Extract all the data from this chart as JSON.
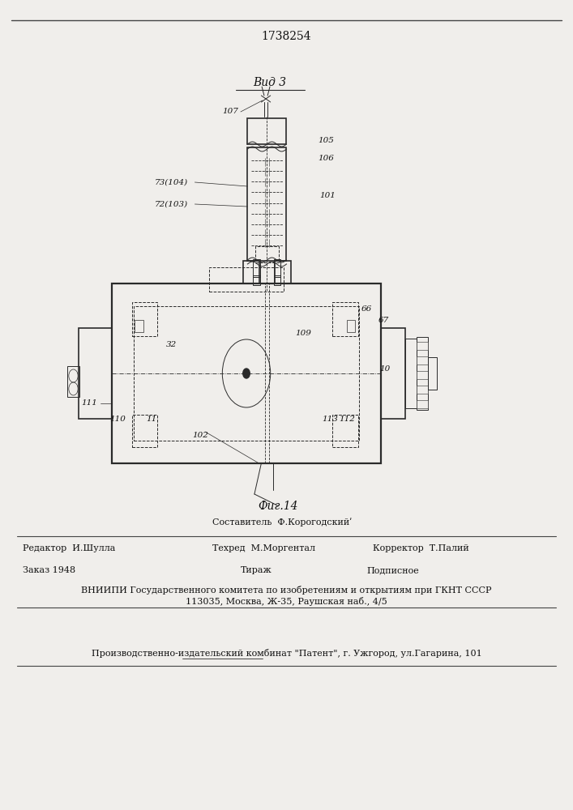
{
  "patent_number": "1738254",
  "background_color": "#f0eeeb",
  "title_view": "Вид 3",
  "figure_label": "Фиг.14",
  "footer": {
    "sestavitel_label": "Составитель  Ф.Корогодскийʹ",
    "redaktor_label": "Редактор  И.Шулла",
    "tehred_label": "Техред  М.Моргентал",
    "korrektor_label": "Корректор  Т.Палий",
    "zakaz": "Заказ 1948",
    "tiraj": "Тираж",
    "podpisnoe": "Подписное",
    "vniiipi_line1": "ВНИИПИ Государственного комитета по изобретениям и открытиям при ГКНТ СССР",
    "vniiipi_line2": "113035, Москва, Ж-35, Раушская наб., 4/5",
    "proizv_line": "Производственно-издательский комбинат \"Патент\", г. Ужгород, ул.Гагарина, 101"
  }
}
